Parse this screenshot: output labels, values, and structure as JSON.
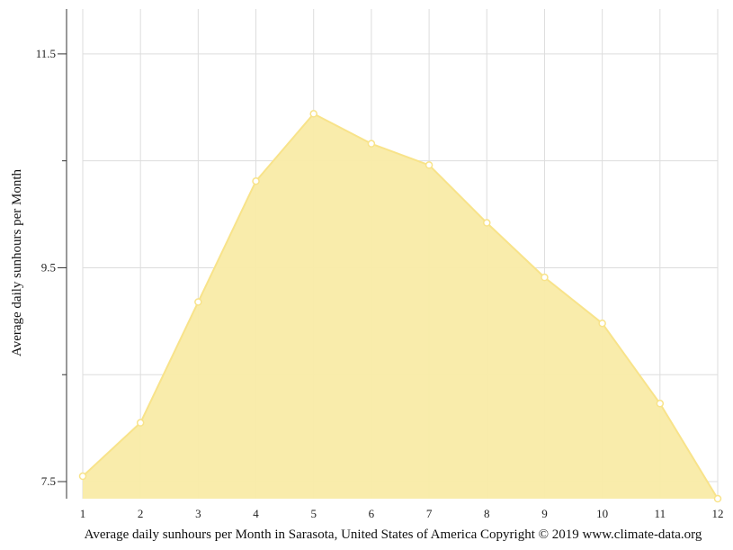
{
  "chart_data": {
    "type": "area",
    "x": [
      1,
      2,
      3,
      4,
      5,
      6,
      7,
      8,
      9,
      10,
      11,
      12
    ],
    "values": [
      7.55,
      8.05,
      9.18,
      10.31,
      10.94,
      10.66,
      10.46,
      9.92,
      9.41,
      8.98,
      8.23,
      7.34
    ],
    "xlabel": "Average daily sunhours per Month in Sarasota, United States of America Copyright © 2019 www.climate-data.org",
    "ylabel": "Average daily sunhours per Month",
    "xlim": [
      1,
      12
    ],
    "ylim": [
      7.34,
      11.92
    ],
    "y_ticks_labeled": [
      "7.5",
      "9.5",
      "11.5"
    ],
    "y_ticks_minor": [
      8.5,
      10.5
    ],
    "grid": true,
    "colors": {
      "fill": "#f9eba6",
      "line": "#f8e38a",
      "marker_fill": "#ffffff",
      "grid": "#dddddd",
      "axis": "#333333"
    }
  }
}
